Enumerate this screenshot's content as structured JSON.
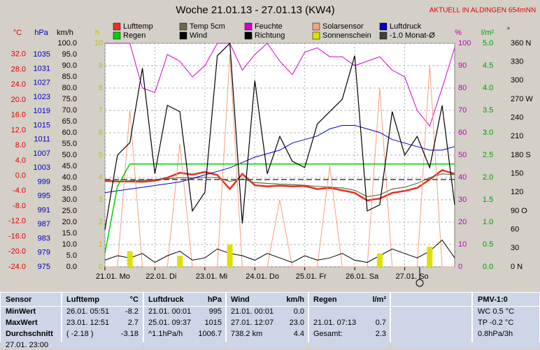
{
  "chart_data": {
    "type": "line",
    "title": "Woche 21.01.13 - 27.01.13 (KW4)",
    "subtitle": "AKTUELL IN ALDINGEN 654mNN",
    "x": [
      0,
      6,
      12,
      18,
      24,
      30,
      36,
      42,
      48,
      54,
      60,
      66,
      72,
      78,
      84,
      90,
      96,
      102,
      108,
      114,
      120,
      126,
      132,
      138,
      144,
      150,
      156,
      162,
      168
    ],
    "xlim": [
      0,
      168
    ],
    "xticks": [
      {
        "value": 0,
        "label": "21.01. Mo"
      },
      {
        "value": 24,
        "label": "22.01. Di"
      },
      {
        "value": 48,
        "label": "23.01. Mi"
      },
      {
        "value": 72,
        "label": "24.01. Do"
      },
      {
        "value": 96,
        "label": "25.01. Fr"
      },
      {
        "value": 120,
        "label": "26.01. Sa"
      },
      {
        "value": 144,
        "label": "27.01. So"
      }
    ],
    "axes": [
      {
        "label": "°C",
        "color": "#e00000",
        "ylim": [
          -24,
          34.9
        ],
        "yticks": [
          {
            "value": 32,
            "label": "32.0"
          },
          {
            "value": 28,
            "label": "28.0"
          },
          {
            "value": 24,
            "label": "24.0"
          },
          {
            "value": 20,
            "label": "20.0"
          },
          {
            "value": 16,
            "label": "16.0"
          },
          {
            "value": 12,
            "label": "12.0"
          },
          {
            "value": 8,
            "label": "8.0"
          },
          {
            "value": 4,
            "label": "4.0"
          },
          {
            "value": 0,
            "label": "0.0"
          },
          {
            "value": -4,
            "label": "-4.0"
          },
          {
            "value": -8,
            "label": "-8.0"
          },
          {
            "value": -12,
            "label": "-12.0"
          },
          {
            "value": -16,
            "label": "-16.0"
          },
          {
            "value": -20,
            "label": "-20.0"
          },
          {
            "value": -24,
            "label": "-24.0"
          }
        ]
      },
      {
        "label": "hPa",
        "color": "#0000c0",
        "ylim": [
          975,
          1038.2
        ],
        "yticks": [
          1035,
          1031,
          1027,
          1023,
          1019,
          1015,
          1011,
          1007,
          1003,
          999,
          995,
          991,
          987,
          983,
          979,
          975
        ]
      },
      {
        "label": "km/h",
        "color": "#000000",
        "ylim": [
          0,
          100
        ],
        "yticks": [
          {
            "value": 100,
            "label": "100.0"
          },
          {
            "value": 95,
            "label": "95.0"
          },
          {
            "value": 90,
            "label": "90.0"
          },
          {
            "value": 85,
            "label": "85.0"
          },
          {
            "value": 80,
            "label": "80.0"
          },
          {
            "value": 75,
            "label": "75.0"
          },
          {
            "value": 70,
            "label": "70.0"
          },
          {
            "value": 65,
            "label": "65.0"
          },
          {
            "value": 60,
            "label": "60.0"
          },
          {
            "value": 55,
            "label": "55.0"
          },
          {
            "value": 50,
            "label": "50.0"
          },
          {
            "value": 45,
            "label": "45.0"
          },
          {
            "value": 40,
            "label": "40.0"
          },
          {
            "value": 35,
            "label": "35.0"
          },
          {
            "value": 30,
            "label": "30.0"
          },
          {
            "value": 25,
            "label": "25.0"
          },
          {
            "value": 20,
            "label": "20.0"
          },
          {
            "value": 15,
            "label": "15.0"
          },
          {
            "value": 10,
            "label": "10.0"
          },
          {
            "value": 5,
            "label": "5.0"
          },
          {
            "value": 0,
            "label": "0.0"
          }
        ]
      },
      {
        "label": "h",
        "color": "#c0c000",
        "ylim": [
          0,
          10
        ],
        "yticks": [
          10,
          9,
          8,
          7,
          6,
          5,
          4,
          3,
          2,
          1,
          0
        ]
      },
      {
        "label": "%",
        "color": "#c000c0",
        "ylim": [
          0,
          100
        ],
        "grid": true,
        "yticks": [
          100,
          90,
          80,
          70,
          60,
          50,
          40,
          30,
          20,
          10,
          0
        ]
      },
      {
        "label": "l/m²",
        "color": "#00a000",
        "ylim": [
          0,
          5
        ],
        "yticks": [
          {
            "value": 5,
            "label": "5.0"
          },
          4.5,
          {
            "value": 4,
            "label": "4.0"
          },
          3.5,
          {
            "value": 3,
            "label": "3.0"
          },
          2.5,
          {
            "value": 2,
            "label": "2.0"
          },
          1.5,
          {
            "value": 1,
            "label": "1.0"
          },
          0.5,
          {
            "value": 0,
            "label": "0.0"
          }
        ]
      },
      {
        "label": "°",
        "color": "#000000",
        "ylim": [
          0,
          360
        ],
        "yticks": [
          {
            "value": 360,
            "label": "360 N"
          },
          330,
          300,
          {
            "value": 270,
            "label": "270 W"
          },
          240,
          210,
          {
            "value": 180,
            "label": "180 S"
          },
          150,
          120,
          {
            "value": 90,
            "label": "90 O"
          },
          60,
          30,
          {
            "value": 0,
            "label": "0 N"
          }
        ]
      }
    ],
    "series": [
      {
        "name": "Lufttemp",
        "color": "#e83020",
        "axis": 0,
        "style": "line",
        "values": [
          -1.3,
          -1.5,
          -1.5,
          -1.6,
          -1.3,
          -0.5,
          0.8,
          0.3,
          1.0,
          0.2,
          -3.5,
          0.5,
          -2.5,
          -2.8,
          -2.6,
          -2.8,
          -2.7,
          -3.5,
          -3.2,
          -3.8,
          -4.5,
          -6.5,
          -6.0,
          -4.5,
          -4.0,
          -3.2,
          -1.0,
          1.5,
          0.5
        ]
      },
      {
        "name": "Temp 5cm",
        "color": "#6b6b4b",
        "axis": 0,
        "style": "line",
        "values": [
          -1.5,
          -1.4,
          -1.3,
          -1.2,
          -1.0,
          -0.8,
          -0.5,
          -0.6,
          -0.4,
          -0.5,
          -1.5,
          -0.8,
          -1.8,
          -2.0,
          -2.2,
          -2.3,
          -2.5,
          -2.8,
          -3.0,
          -3.2,
          -3.8,
          -5.5,
          -5.0,
          -3.5,
          -3.0,
          -2.0,
          -0.5,
          0.5,
          0.3
        ]
      },
      {
        "name": "Feuchte",
        "color": "#d000d0",
        "axis": 4,
        "style": "line",
        "values": [
          100,
          100,
          100,
          80,
          78,
          95,
          92,
          85,
          90,
          100,
          100,
          88,
          95,
          100,
          92,
          86,
          96,
          98,
          94,
          94,
          90,
          92,
          94,
          88,
          85,
          70,
          63,
          80,
          98
        ]
      },
      {
        "name": "Solarsensor",
        "color": "#f4a080",
        "axis": 4,
        "style": "line",
        "values": [
          0,
          0,
          70,
          0,
          0,
          0,
          55,
          0,
          0,
          0,
          95,
          0,
          0,
          0,
          30,
          0,
          0,
          0,
          45,
          0,
          0,
          0,
          80,
          0,
          0,
          0,
          90,
          0,
          0
        ]
      },
      {
        "name": "Luftdruck",
        "color": "#0000c0",
        "axis": 1,
        "style": "line",
        "values": [
          996,
          996.5,
          997,
          997.5,
          998,
          998.5,
          999,
          1000,
          1001,
          1002,
          1003,
          1004.5,
          1006,
          1007,
          1008,
          1010,
          1011,
          1012,
          1014,
          1015,
          1015,
          1014,
          1013,
          1011,
          1010,
          1009,
          1008,
          1008,
          1009
        ]
      },
      {
        "name": "Regen",
        "color": "#00d000",
        "axis": 5,
        "style": "line",
        "values": [
          0.3,
          1.8,
          2.3,
          2.3,
          2.3,
          2.3,
          2.3,
          2.3,
          2.3,
          2.3,
          2.3,
          2.3,
          2.3,
          2.3,
          2.3,
          2.3,
          2.3,
          2.3,
          2.3,
          2.3,
          2.3,
          2.3,
          2.3,
          2.3,
          2.3,
          2.3,
          2.3,
          2.3,
          2.3
        ]
      },
      {
        "name": "Wind",
        "color": "#000000",
        "axis": 2,
        "style": "line",
        "values": [
          3,
          5,
          4,
          6,
          2,
          5,
          7,
          3,
          4,
          8,
          6,
          5,
          3,
          6,
          4,
          2,
          5,
          3,
          4,
          6,
          3,
          2,
          5,
          8,
          6,
          4,
          7,
          12,
          4
        ]
      },
      {
        "name": "Richtung",
        "color": "#000000",
        "axis": 6,
        "style": "line",
        "values": [
          60,
          180,
          200,
          320,
          150,
          260,
          250,
          90,
          120,
          340,
          360,
          70,
          300,
          150,
          210,
          170,
          160,
          230,
          250,
          270,
          340,
          90,
          100,
          250,
          180,
          210,
          160,
          260,
          100
        ]
      },
      {
        "name": "Sonnenschein",
        "color": "#e0e000",
        "axis": 3,
        "style": "bar",
        "values": [
          0,
          0,
          0.7,
          0,
          0,
          0,
          0.5,
          0,
          0,
          0,
          1.0,
          0,
          0,
          0,
          0,
          0,
          0,
          0,
          0,
          0,
          0,
          0,
          0.6,
          0,
          0,
          0,
          0.9,
          0,
          0
        ]
      },
      {
        "name": "-1.0 Monat-Ø",
        "color": "#404040",
        "axis": 0,
        "style": "hline",
        "value": -1.0
      }
    ]
  },
  "table": {
    "header": [
      "Sensor",
      "Lufttemp",
      "°C",
      "Luftdruck",
      "hPa",
      "Wind",
      "km/h",
      "Regen",
      "l/m²",
      "PMV-1:0"
    ],
    "rows": [
      [
        "MinWert",
        "26.01.  05:51",
        "-8.2",
        "21.01.  00:01",
        "995",
        "21.01.  00:01",
        "0.0",
        null,
        null,
        "WC 0.5 °C"
      ],
      [
        "MaxWert",
        "23.01.  12:51",
        "2.7",
        "25.01.  09:37",
        "1015",
        "27.01.  12:07",
        "23.0",
        "21.01.  07:13",
        "0.7",
        "TP -0.2 °C"
      ],
      [
        "Durchschnitt",
        "( -2.18 )",
        "-3.18",
        "^1.1hPa/h",
        "1006.7",
        "738.2 km",
        "4.4",
        "Gesamt:",
        "2.3",
        "0.8hPa/3h"
      ],
      [
        "27.01.  23:00",
        null,
        null,
        null,
        null,
        null,
        null,
        null,
        null,
        null
      ]
    ]
  }
}
